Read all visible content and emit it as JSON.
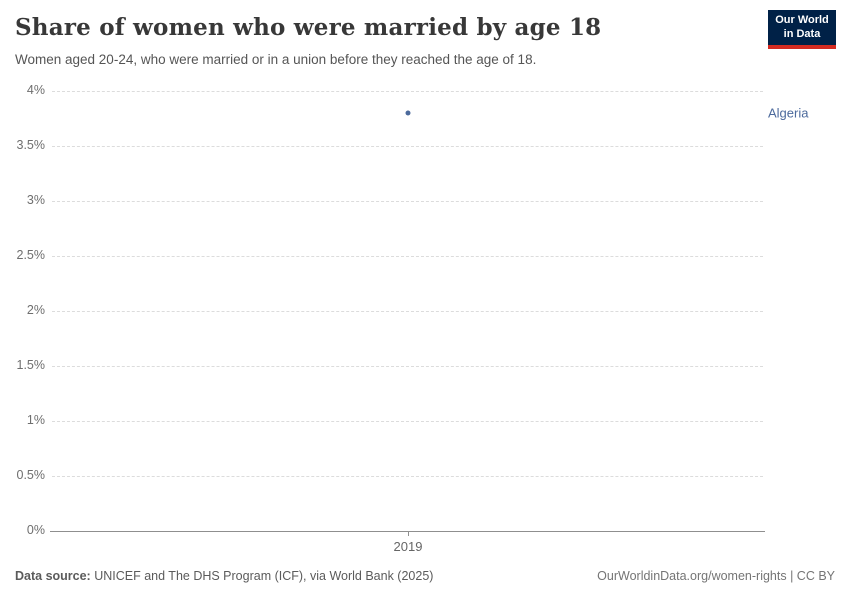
{
  "header": {
    "title": "Share of women who were married by age 18",
    "subtitle": "Women aged 20-24, who were married or in a union before they reached the age of 18.",
    "logo": {
      "line1": "Our World",
      "line2": "in Data"
    }
  },
  "chart_data": {
    "type": "scatter",
    "title": "Share of women who were married by age 18",
    "subtitle": "Women aged 20-24, who were married or in a union before they reached the age of 18.",
    "series": [
      {
        "name": "Algeria",
        "x": [
          2019
        ],
        "y": [
          3.8
        ],
        "color": "#4C6A9C"
      }
    ],
    "x_tick_labels": [
      "2019"
    ],
    "y_tick_values": [
      0,
      0.5,
      1,
      1.5,
      2,
      2.5,
      3,
      3.5,
      4
    ],
    "y_tick_labels": [
      "0%",
      "0.5%",
      "1%",
      "1.5%",
      "2%",
      "2.5%",
      "3%",
      "3.5%",
      "4%"
    ],
    "ylim": [
      0,
      4
    ],
    "xlabel": "",
    "ylabel": "",
    "grid": "horizontal-dashed",
    "legend_position": "right-of-point",
    "entity_label": "Algeria",
    "entity_label_color": "#4C6A9C"
  },
  "footer": {
    "source_label": "Data source:",
    "source_text": " UNICEF and The DHS Program (ICF), via World Bank (2025)",
    "rights_text": "OurWorldinData.org/women-rights | CC BY"
  },
  "colors": {
    "accent_point": "#4C6A9C",
    "logo_bg": "#002147",
    "logo_stripe": "#D42B21",
    "gridline": "#dcdcdc",
    "axis": "#8f8f8f"
  }
}
